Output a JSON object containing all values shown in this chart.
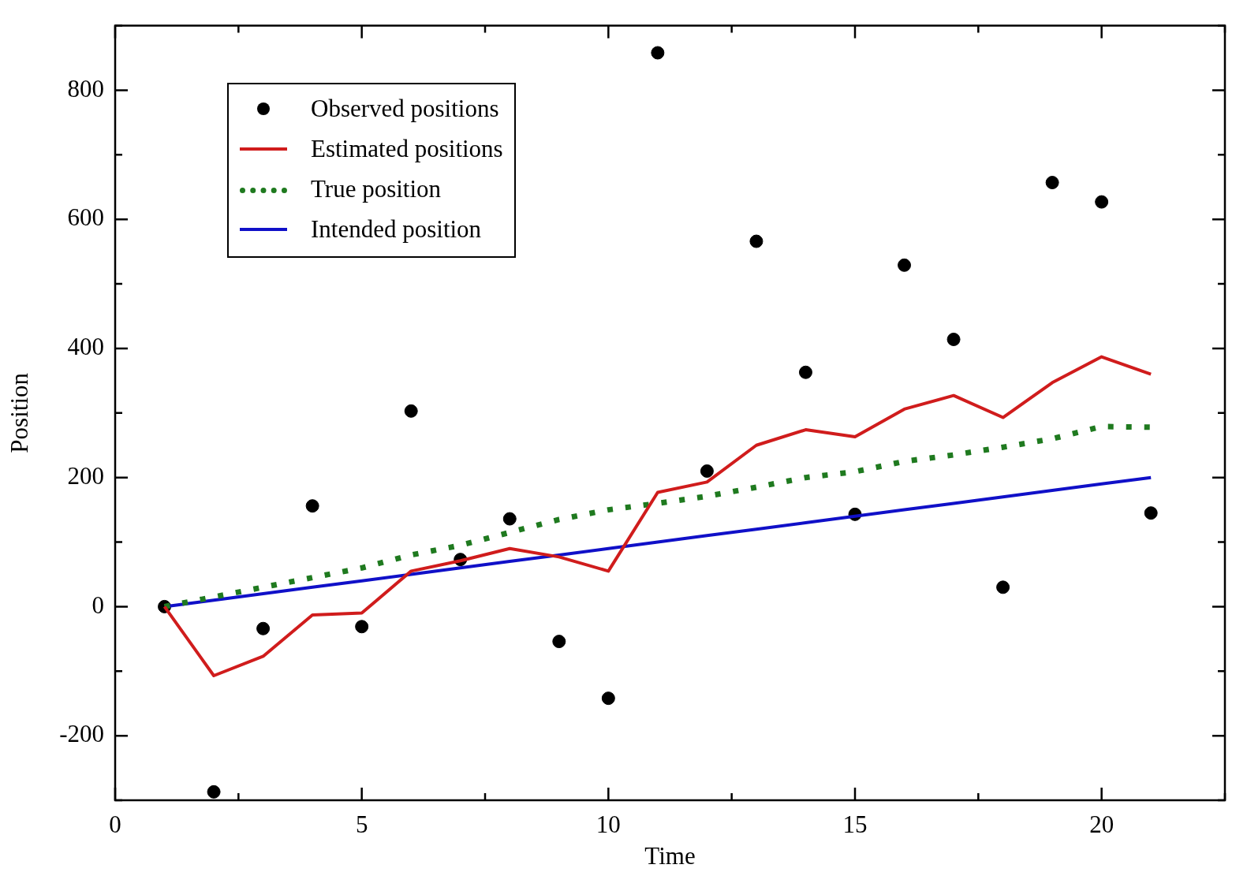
{
  "chart_data": {
    "type": "line",
    "xlabel": "Time",
    "ylabel": "Position",
    "x": [
      1,
      2,
      3,
      4,
      5,
      6,
      7,
      8,
      9,
      10,
      11,
      12,
      13,
      14,
      15,
      16,
      17,
      18,
      19,
      20,
      21
    ],
    "series": [
      {
        "name": "Observed positions",
        "type": "scatter",
        "color": "#000000",
        "marker": "circle",
        "values": [
          0,
          -287,
          -34,
          156,
          -31,
          303,
          73,
          136,
          -54,
          -142,
          858,
          210,
          566,
          363,
          143,
          529,
          414,
          30,
          657,
          627,
          145
        ]
      },
      {
        "name": "Estimated positions",
        "type": "line",
        "color": "#d01c1c",
        "line_style": "solid",
        "values": [
          0,
          -107,
          -77,
          -13,
          -10,
          55,
          71,
          90,
          77,
          55,
          177,
          193,
          250,
          274,
          263,
          306,
          327,
          293,
          347,
          387,
          360
        ]
      },
      {
        "name": "True position",
        "type": "line",
        "color": "#1f7a1f",
        "line_style": "dotted",
        "values": [
          0,
          15,
          30,
          45,
          60,
          80,
          95,
          115,
          135,
          150,
          160,
          171,
          185,
          200,
          209,
          225,
          235,
          247,
          260,
          279,
          278
        ]
      },
      {
        "name": "Intended position",
        "type": "line",
        "color": "#1010c8",
        "line_style": "solid",
        "values": [
          0,
          10,
          20,
          30,
          40,
          50,
          60,
          70,
          80,
          90,
          100,
          110,
          120,
          130,
          140,
          150,
          160,
          170,
          180,
          190,
          200
        ]
      }
    ],
    "xlim": [
      0,
      22.5
    ],
    "xticks": [
      0,
      {
        "value": 2.5,
        "label": null
      },
      5,
      {
        "value": 7.5,
        "label": null
      },
      10,
      {
        "value": 12.5,
        "label": null
      },
      15,
      {
        "value": 17.5,
        "label": null
      },
      20,
      {
        "value": 22.5,
        "label": null
      }
    ],
    "ylim": [
      -300,
      900
    ],
    "yticks": [
      {
        "value": -300,
        "label": null
      },
      -200,
      {
        "value": -100,
        "label": null
      },
      0,
      {
        "value": 100,
        "label": null
      },
      200,
      {
        "value": 300,
        "label": null
      },
      400,
      {
        "value": 500,
        "label": null
      },
      600,
      {
        "value": 700,
        "label": null
      },
      800,
      {
        "value": 900,
        "label": null
      }
    ],
    "grid": false,
    "legend": "top left"
  }
}
